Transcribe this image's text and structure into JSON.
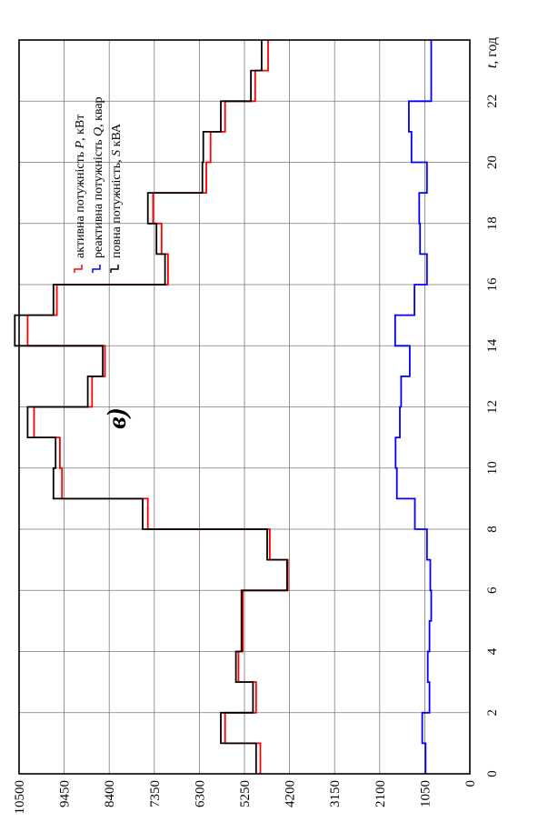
{
  "chart_data": {
    "type": "line",
    "step": true,
    "orientation": "rotated-90-ccw",
    "subfigure_label": "в)",
    "xlabel_var": "t",
    "xlabel_unit": ", год",
    "ylabel": "",
    "xlim": [
      0,
      24
    ],
    "ylim": [
      0,
      10500
    ],
    "x_ticks": [
      0,
      2,
      4,
      6,
      8,
      10,
      12,
      14,
      16,
      18,
      20,
      22
    ],
    "y_ticks": [
      0,
      1050,
      2100,
      3150,
      4200,
      5250,
      6300,
      7350,
      8400,
      9450,
      10500
    ],
    "grid": true,
    "legend_position": "top-left",
    "x": [
      0,
      1,
      2,
      3,
      4,
      5,
      6,
      7,
      8,
      9,
      10,
      11,
      12,
      13,
      14,
      15,
      16,
      17,
      18,
      19,
      20,
      21,
      22,
      23
    ],
    "series": [
      {
        "name": "активна потужність P, кВт",
        "legend_prefix": "активна потужність ",
        "legend_var": "P",
        "legend_unit": ", кВт",
        "color": "#ff0000",
        "values": [
          4880,
          5700,
          4980,
          5390,
          5290,
          5290,
          4240,
          4660,
          7500,
          9500,
          9550,
          10150,
          8800,
          8500,
          10300,
          9620,
          7030,
          7180,
          7380,
          6140,
          6040,
          5700,
          5000,
          4700
        ]
      },
      {
        "name": "реактивна потужність Q, квар",
        "legend_prefix": "реактивна потужність ",
        "legend_var": "Q",
        "legend_unit": ", квар",
        "color": "#0000ff",
        "values": [
          1030,
          1110,
          940,
          980,
          940,
          900,
          920,
          1000,
          1280,
          1700,
          1730,
          1630,
          1600,
          1400,
          1740,
          1290,
          1000,
          1160,
          1180,
          1000,
          1360,
          1420,
          900,
          900
        ]
      },
      {
        "name": "повна потужність, S кВА",
        "legend_prefix": "повна  потужність, ",
        "legend_var": "S",
        "legend_unit": " кВА",
        "color": "#000000",
        "values": [
          4980,
          5800,
          5050,
          5450,
          5320,
          5320,
          4260,
          4720,
          7620,
          9700,
          9650,
          10300,
          8900,
          8550,
          10600,
          9700,
          7100,
          7300,
          7500,
          6230,
          6210,
          5800,
          5100,
          4850
        ]
      }
    ]
  }
}
